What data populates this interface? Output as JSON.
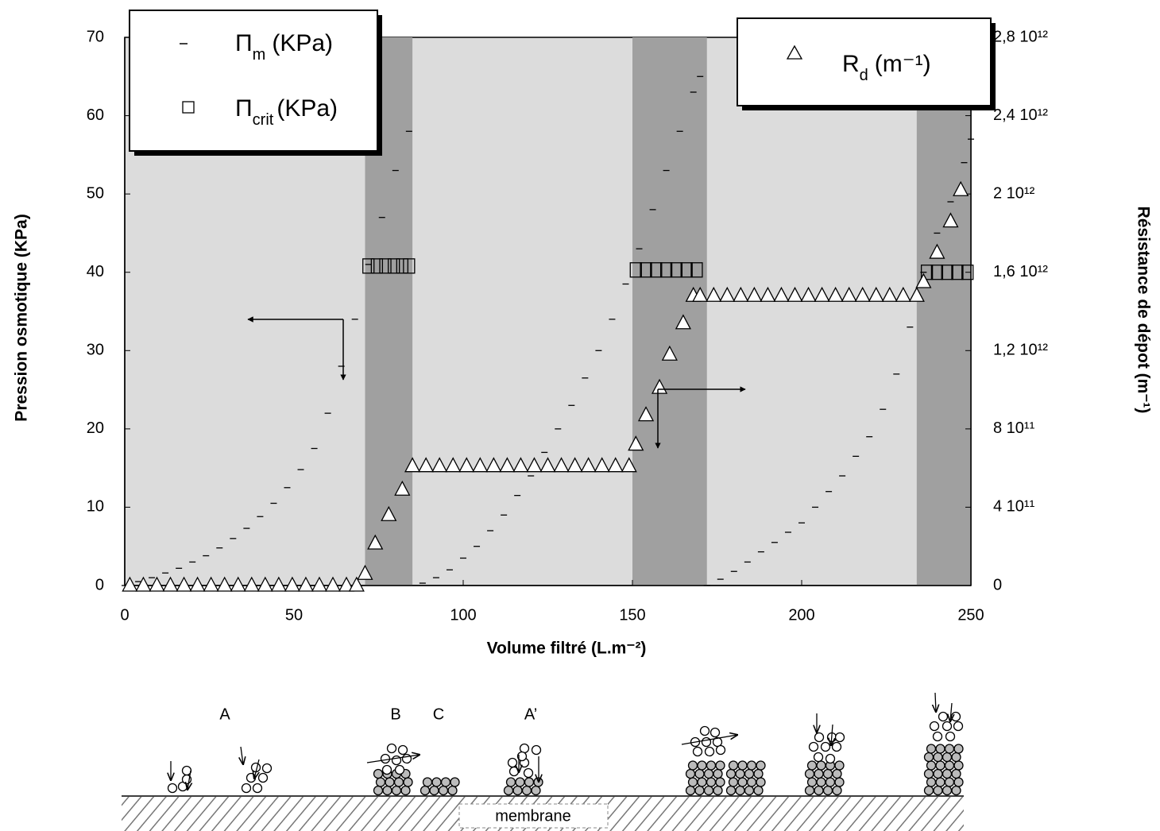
{
  "chart_data": {
    "type": "scatter",
    "xlabel": "Volume filtré (L.m⁻²)",
    "ylabel": "Pression osmotique (KPa)",
    "y2label": "Résistance de dépot (m⁻¹)",
    "xlim": [
      0,
      250
    ],
    "xticks": [
      0,
      50,
      100,
      150,
      200,
      250
    ],
    "ylim": [
      0,
      70
    ],
    "yticks": [
      0,
      10,
      20,
      30,
      40,
      50,
      60,
      70
    ],
    "y2lim": [
      0,
      2800000000000
    ],
    "y2ticks": [
      0,
      {
        "value": 400000000000,
        "label": "4 10¹¹"
      },
      {
        "value": 800000000000,
        "label": "8 10¹¹"
      },
      {
        "value": 1200000000000,
        "label": "1,2 10¹²"
      },
      {
        "value": 1600000000000,
        "label": "1,6 10¹²"
      },
      {
        "value": 2000000000000,
        "label": "2 10¹²"
      },
      {
        "value": 2400000000000,
        "label": "2,4 10¹²"
      },
      {
        "value": 2800000000000,
        "label": "2,8 10¹²"
      }
    ],
    "bands": [
      [
        71,
        85
      ],
      [
        150,
        172
      ],
      [
        234,
        250
      ]
    ],
    "series": [
      {
        "name": "Π",
        "name_sub": "m",
        "name_unit": "(KPa)",
        "marker": "dash",
        "color": "#000000",
        "x": [
          0,
          4,
          8,
          12,
          16,
          20,
          24,
          28,
          32,
          36,
          40,
          44,
          48,
          52,
          56,
          60,
          64,
          68,
          72,
          76,
          80,
          84,
          88,
          92,
          96,
          100,
          104,
          108,
          112,
          116,
          120,
          124,
          128,
          132,
          136,
          140,
          144,
          148,
          152,
          156,
          160,
          164,
          168,
          170,
          172,
          176,
          180,
          184,
          188,
          192,
          196,
          200,
          204,
          208,
          212,
          216,
          220,
          224,
          228,
          232,
          236,
          240,
          244,
          248,
          250
        ],
        "values": [
          0,
          0.5,
          1,
          1.6,
          2.2,
          3,
          3.8,
          4.8,
          6,
          7.3,
          8.8,
          10.5,
          12.5,
          14.8,
          17.5,
          22,
          28,
          34,
          41,
          47,
          53,
          58,
          0.3,
          1,
          2,
          3.5,
          5,
          7,
          9,
          11.5,
          14,
          17,
          20,
          23,
          26.5,
          30,
          34,
          38.5,
          43,
          48,
          53,
          58,
          63,
          65,
          0,
          0.8,
          1.8,
          3,
          4.3,
          5.5,
          6.8,
          8,
          10,
          12,
          14,
          16.5,
          19,
          22.5,
          27,
          33,
          40,
          45,
          49,
          54,
          57
        ]
      },
      {
        "name": "Π",
        "name_sub": "crit",
        "name_unit": "(KPa)",
        "marker": "square",
        "color": "#000000",
        "x": [
          72,
          74.5,
          77,
          79.5,
          82,
          84,
          151,
          154,
          157,
          160,
          163,
          166,
          169,
          237,
          240,
          243,
          246,
          249
        ],
        "values": [
          40.8,
          40.8,
          40.8,
          40.8,
          40.8,
          40.8,
          40.3,
          40.3,
          40.3,
          40.3,
          40.3,
          40.3,
          40.3,
          40,
          40,
          40,
          40,
          40
        ]
      },
      {
        "name": "R",
        "name_sub": "d",
        "name_unit": "(m⁻¹)",
        "marker": "triangle",
        "color": "#000000",
        "axis": "y2",
        "x": [
          1.5,
          5.5,
          9.5,
          13.5,
          17.5,
          21.5,
          25.5,
          29.5,
          33.5,
          37.5,
          41.5,
          45.5,
          49.5,
          53.5,
          57.5,
          61.5,
          65.5,
          68.5,
          71,
          74,
          78,
          82,
          85,
          89,
          93,
          97,
          101,
          105,
          109,
          113,
          117,
          121,
          125,
          129,
          133,
          137,
          141,
          145,
          149,
          151,
          154,
          158,
          161,
          165,
          168,
          170,
          174,
          178,
          182,
          186,
          190,
          194,
          198,
          202,
          206,
          210,
          214,
          218,
          222,
          226,
          230,
          234,
          236,
          240,
          244,
          247
        ],
        "values": [
          0,
          0,
          0,
          0,
          0,
          0,
          0,
          0,
          0,
          0,
          0,
          0,
          0,
          0,
          0,
          0,
          0,
          0,
          60000000000,
          215000000000,
          360000000000,
          490000000000,
          610000000000,
          610000000000,
          610000000000,
          610000000000,
          610000000000,
          610000000000,
          610000000000,
          610000000000,
          610000000000,
          610000000000,
          610000000000,
          610000000000,
          610000000000,
          610000000000,
          610000000000,
          610000000000,
          610000000000,
          720000000000,
          870000000000,
          1010000000000,
          1180000000000,
          1340000000000,
          1480000000000,
          1480000000000,
          1480000000000,
          1480000000000,
          1480000000000,
          1480000000000,
          1480000000000,
          1480000000000,
          1480000000000,
          1480000000000,
          1480000000000,
          1480000000000,
          1480000000000,
          1480000000000,
          1480000000000,
          1480000000000,
          1480000000000,
          1480000000000,
          1550000000000,
          1700000000000,
          1860000000000,
          2020000000000
        ]
      }
    ]
  },
  "diagram": {
    "labels": [
      "A",
      "B",
      "C",
      "A’"
    ],
    "membrane": "membrane"
  }
}
